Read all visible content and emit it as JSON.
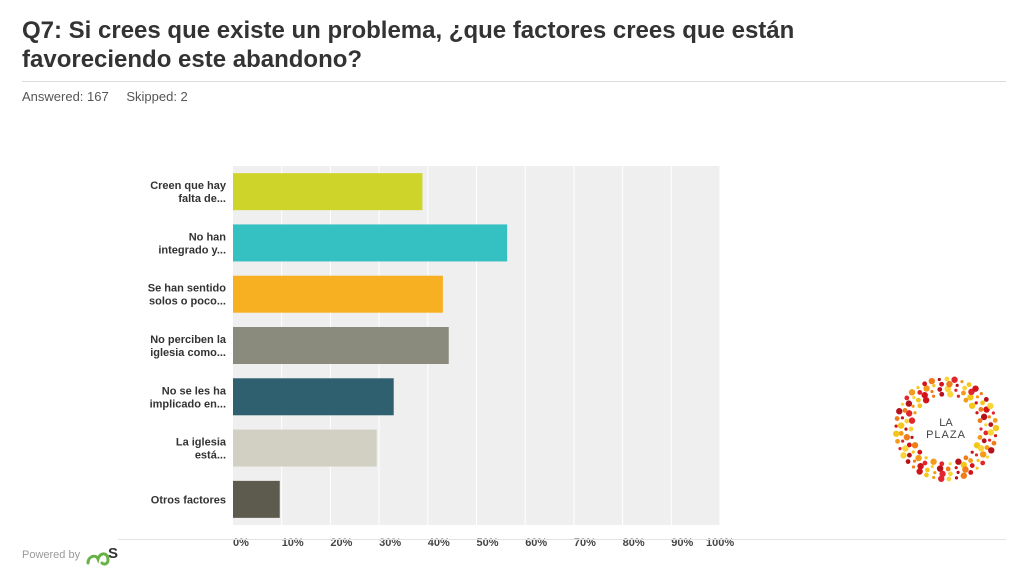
{
  "header": {
    "title": "Q7: Si crees que existe un problema, ¿que factores crees que están favoreciendo este abandono?",
    "answered": "Answered: 167",
    "skipped": "Skipped: 2"
  },
  "footer": {
    "powered_by": "Powered by",
    "brand_letter": "S"
  },
  "logo": {
    "line1": "LA",
    "line2": "PLAZA",
    "icon": "la-plaza-dots-logo"
  },
  "colors": {
    "plot_bg": "#efefef",
    "grid": "#ffffff"
  },
  "chart_data": {
    "type": "bar",
    "orientation": "horizontal",
    "categories": [
      [
        "Creen que hay",
        "falta de..."
      ],
      [
        "No han",
        "integrado y..."
      ],
      [
        "Se han sentido",
        "solos o poco..."
      ],
      [
        "No perciben la",
        "iglesia como..."
      ],
      [
        "No se les ha",
        "implicado en..."
      ],
      [
        "La iglesia",
        "está..."
      ],
      [
        "Otros factores"
      ]
    ],
    "values": [
      38.9,
      56.3,
      43.1,
      44.3,
      33.0,
      29.5,
      9.6
    ],
    "colors": [
      "#cfd42b",
      "#35c0c2",
      "#f7b022",
      "#8a8a7d",
      "#2e6070",
      "#d1d0c3",
      "#5d5b4d"
    ],
    "xticks": [
      "0%",
      "10%",
      "20%",
      "30%",
      "40%",
      "50%",
      "60%",
      "70%",
      "80%",
      "90%",
      "100%"
    ],
    "xlim": [
      0,
      100
    ],
    "grid": true,
    "legend": "none"
  }
}
